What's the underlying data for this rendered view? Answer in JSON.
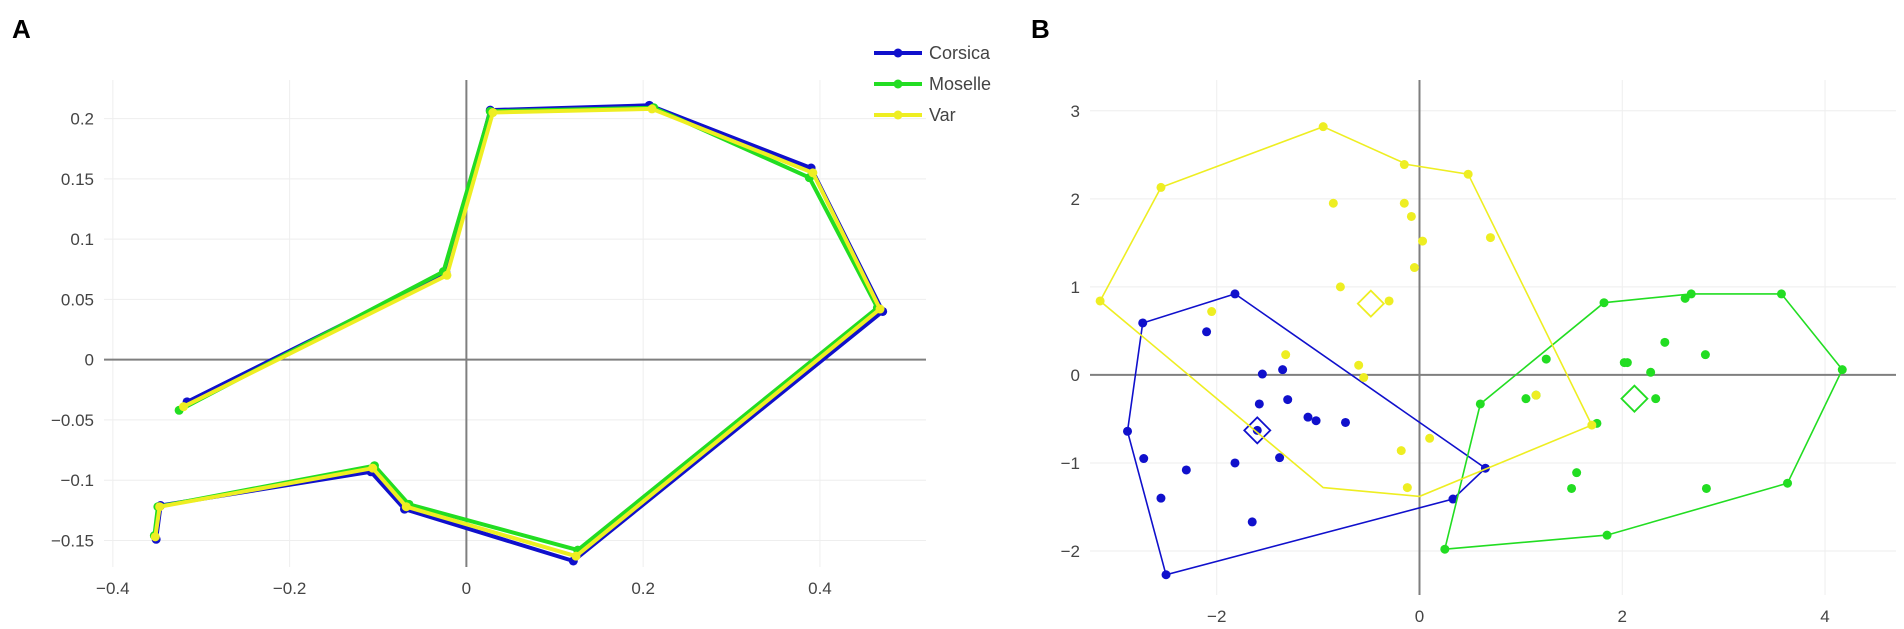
{
  "chart_data": [
    {
      "type": "line",
      "panel": "A",
      "title": "",
      "xlabel": "",
      "ylabel": "",
      "xlim": [
        -0.41,
        0.52
      ],
      "ylim": [
        -0.172,
        0.232
      ],
      "xticks": [
        -0.4,
        -0.2,
        0,
        0.2,
        0.4
      ],
      "xtick_labels": [
        "−0.4",
        "−0.2",
        "0",
        "0.2",
        "0.4"
      ],
      "yticks": [
        -0.15,
        -0.1,
        -0.05,
        0,
        0.05,
        0.1,
        0.15,
        0.2
      ],
      "ytick_labels": [
        "−0.15",
        "−0.1",
        "−0.05",
        "0",
        "0.05",
        "0.1",
        "0.15",
        "0.2"
      ],
      "grid": true,
      "legend_position": "top-right",
      "series": [
        {
          "name": "Corsica",
          "color": "#1010cc",
          "x": [
            -0.316,
            -0.023,
            0.027,
            0.207,
            0.39,
            0.471,
            0.121,
            -0.07,
            -0.108,
            -0.346,
            -0.351
          ],
          "y": [
            -0.035,
            0.072,
            0.207,
            0.211,
            0.159,
            0.04,
            -0.167,
            -0.124,
            -0.093,
            -0.121,
            -0.149
          ]
        },
        {
          "name": "Moselle",
          "color": "#22dd22",
          "x": [
            -0.325,
            -0.026,
            0.027,
            0.212,
            0.388,
            0.465,
            0.126,
            -0.065,
            -0.104,
            -0.349,
            -0.353
          ],
          "y": [
            -0.042,
            0.073,
            0.206,
            0.209,
            0.151,
            0.043,
            -0.158,
            -0.12,
            -0.088,
            -0.122,
            -0.146
          ]
        },
        {
          "name": "Var",
          "color": "#eeee22",
          "x": [
            -0.32,
            -0.022,
            0.03,
            0.21,
            0.392,
            0.468,
            0.124,
            -0.068,
            -0.106,
            -0.347,
            -0.352
          ],
          "y": [
            -0.039,
            0.07,
            0.205,
            0.208,
            0.155,
            0.042,
            -0.163,
            -0.122,
            -0.09,
            -0.122,
            -0.147
          ]
        }
      ]
    },
    {
      "type": "scatter",
      "panel": "B",
      "title": "",
      "xlabel": "",
      "ylabel": "",
      "xlim": [
        -3.25,
        4.7
      ],
      "ylim": [
        -2.5,
        3.35
      ],
      "xticks": [
        -2,
        0,
        2,
        4
      ],
      "xtick_labels": [
        "−2",
        "0",
        "2",
        "4"
      ],
      "yticks": [
        -2,
        -1,
        0,
        1,
        2,
        3
      ],
      "ytick_labels": [
        "−2",
        "−1",
        "0",
        "1",
        "2",
        "3"
      ],
      "grid": true,
      "series": [
        {
          "name": "Corsica",
          "color": "#1010cc",
          "points_x": [
            -2.73,
            -2.88,
            -2.72,
            -2.55,
            -2.5,
            -2.3,
            -2.1,
            -1.82,
            -1.82,
            -1.65,
            -1.6,
            -1.58,
            -1.55,
            -1.38,
            -1.35,
            -1.3,
            -1.1,
            -1.02,
            -0.73,
            0.33,
            0.65
          ],
          "points_y": [
            0.59,
            -0.64,
            -0.95,
            -1.4,
            -2.27,
            -1.08,
            0.49,
            0.92,
            -1.0,
            -1.67,
            -0.63,
            -0.33,
            0.01,
            -0.94,
            0.06,
            -0.28,
            -0.48,
            -0.52,
            -0.54,
            -1.41,
            -1.06
          ],
          "hull_x": [
            -2.73,
            -1.82,
            0.65,
            0.33,
            -2.5,
            -2.88
          ],
          "hull_y": [
            0.59,
            0.92,
            -1.06,
            -1.41,
            -2.27,
            -0.64
          ],
          "centroid": [
            -1.6,
            -0.63
          ]
        },
        {
          "name": "Moselle",
          "color": "#22dd22",
          "points_x": [
            0.25,
            0.6,
            1.05,
            1.15,
            1.25,
            1.5,
            1.55,
            1.75,
            1.82,
            1.85,
            2.02,
            2.05,
            2.28,
            2.33,
            2.42,
            2.62,
            2.68,
            2.82,
            2.83,
            3.57,
            3.63,
            4.17
          ],
          "points_y": [
            -1.98,
            -0.33,
            -0.27,
            -0.23,
            0.18,
            -1.29,
            -1.11,
            -0.55,
            0.82,
            -1.82,
            0.14,
            0.14,
            0.03,
            -0.27,
            0.37,
            0.87,
            0.92,
            0.23,
            -1.29,
            0.92,
            -1.23,
            0.06
          ],
          "hull_x": [
            0.25,
            0.6,
            1.82,
            2.68,
            3.57,
            4.17,
            3.63,
            1.85
          ],
          "hull_y": [
            -1.98,
            -0.33,
            0.82,
            0.92,
            0.92,
            0.06,
            -1.23,
            -1.82
          ],
          "centroid": [
            2.12,
            -0.27
          ]
        },
        {
          "name": "Var",
          "color": "#eeee22",
          "points_x": [
            -3.15,
            -2.55,
            -2.05,
            -1.32,
            -0.95,
            -0.85,
            -0.78,
            -0.6,
            -0.55,
            -0.3,
            -0.18,
            -0.15,
            -0.15,
            -0.12,
            -0.08,
            -0.05,
            0.03,
            0.1,
            0.48,
            0.7,
            1.15,
            1.7
          ],
          "points_y": [
            0.84,
            2.13,
            0.72,
            0.23,
            2.82,
            1.95,
            1.0,
            0.11,
            -0.03,
            0.84,
            -0.86,
            1.95,
            2.39,
            -1.28,
            1.8,
            1.22,
            1.52,
            -0.72,
            2.28,
            1.56,
            -0.23,
            -0.57
          ],
          "hull_x": [
            -3.15,
            -2.55,
            -0.95,
            -0.12,
            0.48,
            1.7,
            0.0,
            -0.95
          ],
          "hull_y": [
            0.84,
            2.13,
            2.82,
            2.39,
            2.28,
            -0.57,
            -1.38,
            -1.28
          ],
          "centroid": [
            -0.48,
            0.81
          ]
        }
      ]
    }
  ],
  "legend": [
    {
      "label": "Corsica",
      "color": "#1010cc"
    },
    {
      "label": "Moselle",
      "color": "#22dd22"
    },
    {
      "label": "Var",
      "color": "#eeee22"
    }
  ],
  "panel_labels": [
    "A",
    "B"
  ]
}
